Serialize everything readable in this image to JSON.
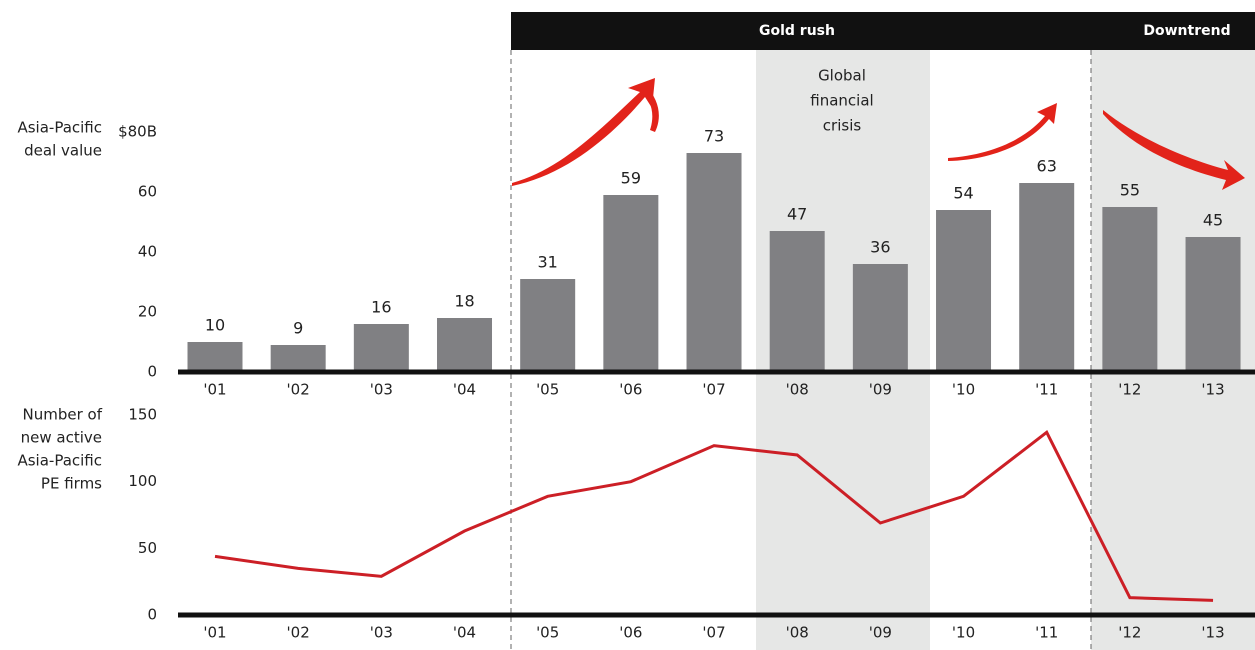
{
  "annotations": {
    "periods": [
      "Gold rush",
      "Downtrend"
    ],
    "crisis": [
      "Global",
      "financial",
      "crisis"
    ]
  },
  "chart_data": [
    {
      "type": "bar",
      "ylabel": [
        "Asia-Pacific",
        "deal value"
      ],
      "categories": [
        "'01",
        "'02",
        "'03",
        "'04",
        "'05",
        "'06",
        "'07",
        "'08",
        "'09",
        "'10",
        "'11",
        "'12",
        "'13"
      ],
      "values": [
        10,
        9,
        16,
        18,
        31,
        59,
        73,
        47,
        36,
        54,
        63,
        55,
        45
      ],
      "color": "#808083",
      "ylim": [
        0,
        80
      ],
      "yticks": [
        0,
        20,
        40,
        60,
        {
          "value": 80,
          "label": "$80B"
        }
      ]
    },
    {
      "type": "line",
      "ylabel": [
        "Number of",
        "new active",
        "Asia-Pacific",
        "PE firms"
      ],
      "categories": [
        "'01",
        "'02",
        "'03",
        "'04",
        "'05",
        "'06",
        "'07",
        "'08",
        "'09",
        "'10",
        "'11",
        "'12",
        "'13"
      ],
      "values": [
        44,
        35,
        29,
        63,
        89,
        100,
        127,
        120,
        69,
        89,
        137,
        13,
        11
      ],
      "color": "#cc1f26",
      "ylim": [
        0,
        150
      ],
      "yticks": [
        0,
        50,
        100,
        150
      ]
    }
  ]
}
